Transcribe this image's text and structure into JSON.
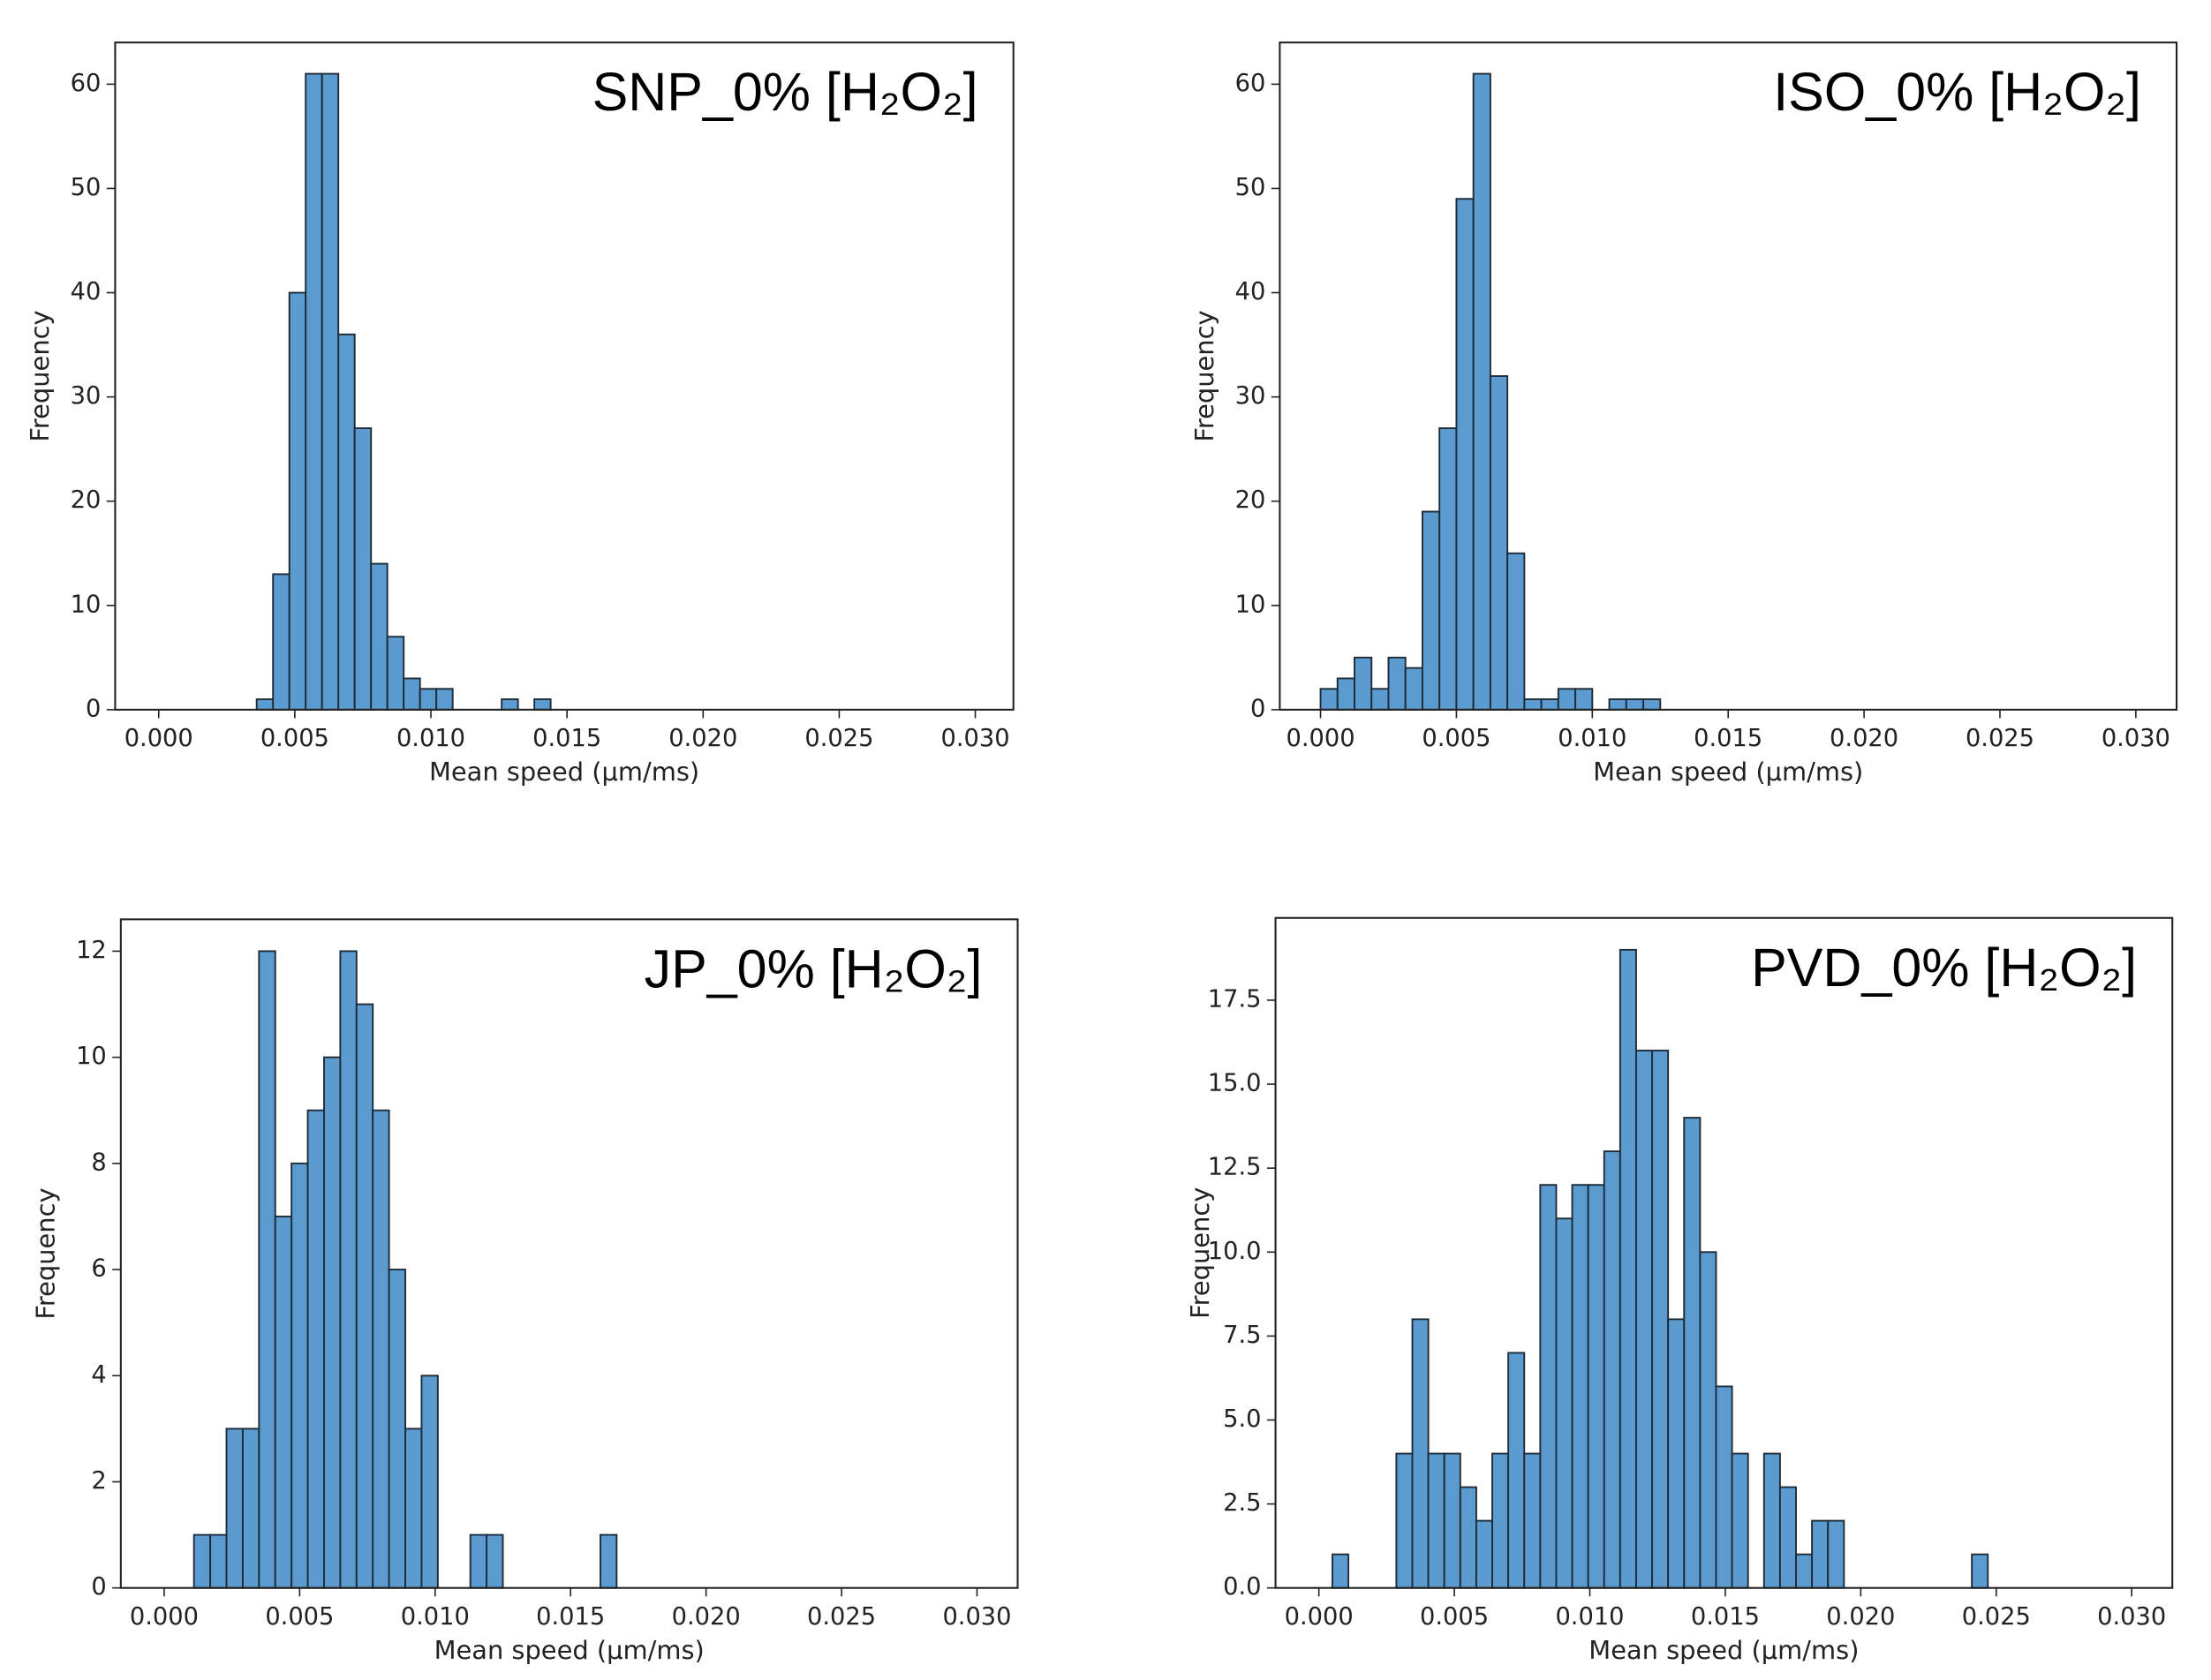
{
  "chart_data": [
    {
      "type": "histogram",
      "title": "SNP_0% [H₂O₂]",
      "xlabel": "Mean speed (µm/ms)",
      "ylabel": "Frequency",
      "bins": [
        0.0036,
        0.0042,
        0.0048,
        0.0054,
        0.006,
        0.0066,
        0.0072,
        0.0078,
        0.0084,
        0.009,
        0.0096,
        0.0102,
        0.0108,
        0.0114,
        0.012,
        0.0126,
        0.0132,
        0.0138,
        0.0144
      ],
      "counts": [
        1,
        13,
        40,
        61,
        61,
        36,
        27,
        14,
        7,
        3,
        2,
        2,
        0,
        0,
        0,
        1,
        0,
        1
      ],
      "color": "#5b9bcf",
      "edgecolor": "#1f2d3a",
      "xlim": [
        -0.0016,
        0.0314
      ],
      "ylim": [
        0,
        64
      ],
      "xticks": [
        {
          "value": 0,
          "label": "0.000"
        },
        0.005,
        {
          "value": 0.01,
          "label": "0.010"
        },
        0.015,
        {
          "value": 0.02,
          "label": "0.020"
        },
        0.025,
        {
          "value": 0.03,
          "label": "0.030"
        }
      ],
      "yticks": [
        0,
        10,
        20,
        30,
        40,
        50,
        60
      ]
    },
    {
      "type": "histogram",
      "title": "ISO_0% [H₂O₂]",
      "xlabel": "Mean speed (µm/ms)",
      "ylabel": "Frequency",
      "bins": [
        0,
        0.000625,
        0.00125,
        0.001875,
        0.0025,
        0.003125,
        0.00375,
        0.004375,
        0.005,
        0.005625,
        0.00625,
        0.006875,
        0.0075,
        0.008125,
        0.00875,
        0.009375,
        0.01,
        0.010625,
        0.01125,
        0.011875,
        0.0125
      ],
      "counts": [
        2,
        3,
        5,
        2,
        5,
        4,
        19,
        27,
        49,
        61,
        32,
        15,
        1,
        1,
        2,
        2,
        0,
        1,
        1,
        1
      ],
      "color": "#5b9bcf",
      "edgecolor": "#1f2d3a",
      "xlim": [
        -0.0015,
        0.0315
      ],
      "ylim": [
        0,
        64
      ],
      "xticks": [
        {
          "value": 0,
          "label": "0.000"
        },
        0.005,
        {
          "value": 0.01,
          "label": "0.010"
        },
        0.015,
        {
          "value": 0.02,
          "label": "0.020"
        },
        0.025,
        {
          "value": 0.03,
          "label": "0.030"
        }
      ],
      "yticks": [
        0,
        10,
        20,
        30,
        40,
        50,
        60
      ]
    },
    {
      "type": "histogram",
      "title": "JP_0% [H₂O₂]",
      "xlabel": "Mean speed (µm/ms)",
      "ylabel": "Frequency",
      "bins": [
        0.0011,
        0.0017,
        0.0023,
        0.0029,
        0.0035,
        0.0041,
        0.0047,
        0.0053,
        0.0059,
        0.0065,
        0.0071,
        0.0077,
        0.0083,
        0.0089,
        0.0095,
        0.0101,
        0.0107,
        0.0113,
        0.0119,
        0.0125,
        0.0131,
        0.0137,
        0.0143,
        0.0149,
        0.0155,
        0.0161,
        0.0167
      ],
      "counts": [
        1,
        1,
        3,
        3,
        12,
        7,
        8,
        9,
        10,
        12,
        11,
        9,
        6,
        3,
        4,
        0,
        0,
        1,
        1,
        0,
        0,
        0,
        0,
        0,
        0,
        1
      ],
      "color": "#5b9bcf",
      "edgecolor": "#1f2d3a",
      "xlim": [
        -0.0016,
        0.0315
      ],
      "ylim": [
        0,
        12.6
      ],
      "xticks": [
        {
          "value": 0,
          "label": "0.000"
        },
        0.005,
        {
          "value": 0.01,
          "label": "0.010"
        },
        0.015,
        {
          "value": 0.02,
          "label": "0.020"
        },
        0.025,
        {
          "value": 0.03,
          "label": "0.030"
        }
      ],
      "yticks": [
        0,
        2,
        4,
        6,
        8,
        10,
        12
      ]
    },
    {
      "type": "histogram",
      "title": "PVD_0% [H₂O₂]",
      "xlabel": "Mean speed (µm/ms)",
      "ylabel": "Frequency",
      "bins": [
        0.0005,
        0.00109,
        0.00168,
        0.00227,
        0.00286,
        0.00345,
        0.00404,
        0.00463,
        0.00522,
        0.00581,
        0.0064,
        0.00699,
        0.00758,
        0.00817,
        0.00876,
        0.00935,
        0.00994,
        0.01053,
        0.01112,
        0.01171,
        0.0123,
        0.01289,
        0.01348,
        0.01407,
        0.01466,
        0.01525,
        0.01584,
        0.01643,
        0.01702,
        0.01761,
        0.0182,
        0.01879,
        0.01938,
        0.01997,
        0.02056,
        0.02115,
        0.02174,
        0.02233,
        0.02292,
        0.02351,
        0.0241,
        0.02469
      ],
      "counts": [
        1,
        0,
        0,
        0,
        4,
        8,
        4,
        4,
        3,
        2,
        4,
        7,
        4,
        12,
        11,
        12,
        12,
        13,
        19,
        16,
        16,
        8,
        14,
        10,
        6,
        4,
        0,
        4,
        3,
        1,
        2,
        2,
        0,
        0,
        0,
        0,
        0,
        0,
        0,
        0,
        1
      ],
      "color": "#5b9bcf",
      "edgecolor": "#1f2d3a",
      "xlim": [
        -0.0016,
        0.0315
      ],
      "ylim": [
        0,
        19.95
      ],
      "xticks": [
        {
          "value": 0,
          "label": "0.000"
        },
        0.005,
        {
          "value": 0.01,
          "label": "0.010"
        },
        0.015,
        {
          "value": 0.02,
          "label": "0.020"
        },
        0.025,
        {
          "value": 0.03,
          "label": "0.030"
        }
      ],
      "yticks": [
        {
          "value": 0,
          "label": "0.0"
        },
        2.5,
        {
          "value": 5,
          "label": "5.0"
        },
        7.5,
        {
          "value": 10,
          "label": "10.0"
        },
        12.5,
        {
          "value": 15,
          "label": "15.0"
        },
        17.5
      ]
    }
  ]
}
